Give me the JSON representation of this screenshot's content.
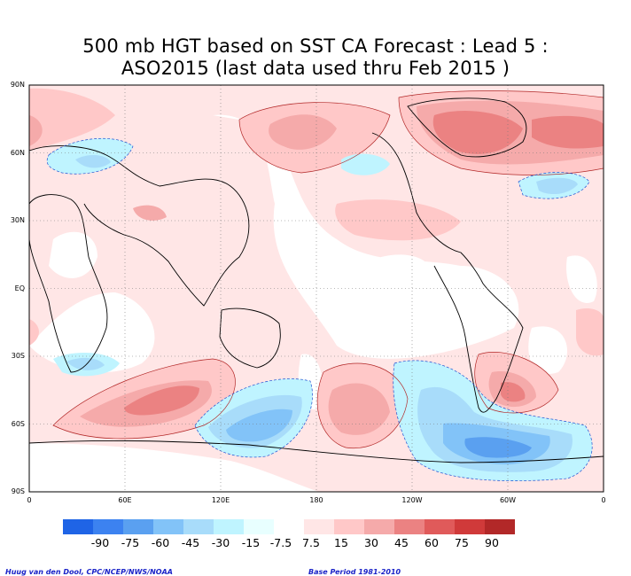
{
  "title": {
    "line1": "500 mb HGT based on SST CA Forecast : Lead 5 :",
    "line2": "ASO2015 (last data used thru Feb 2015 )"
  },
  "map": {
    "projection": "equirectangular",
    "lon_range": [
      0,
      360
    ],
    "lat_range": [
      -90,
      90
    ],
    "grid": true,
    "lat_labels": [
      "90N",
      "60N",
      "30N",
      "EQ",
      "30S",
      "60S",
      "90S"
    ],
    "lon_labels": [
      "0",
      "60E",
      "120E",
      "180",
      "120W",
      "60W",
      "0"
    ]
  },
  "colorbar": {
    "colors": [
      "#1f64e6",
      "#3c82f0",
      "#5aa0f0",
      "#82c3f8",
      "#a8dcfa",
      "#bff4ff",
      "#e8ffff",
      "#ffffff",
      "#ffe6e6",
      "#ffc8c8",
      "#f5aaaa",
      "#eb8282",
      "#e05a5a",
      "#d03a3a",
      "#b22828"
    ],
    "labels": [
      "-90",
      "-75",
      "-60",
      "-45",
      "-30",
      "-15",
      "-7.5",
      "7.5",
      "15",
      "30",
      "45",
      "60",
      "75",
      "90"
    ]
  },
  "credits": {
    "left": "Huug van den Dool, CPC/NCEP/NWS/NOAA",
    "right": "Base Period 1981-2010"
  }
}
